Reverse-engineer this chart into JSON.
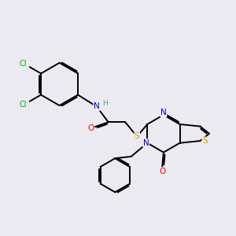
{
  "background_color": "#eaeaf0",
  "atom_colors": {
    "C": "#000000",
    "N": "#0000cc",
    "O": "#ff0000",
    "S": "#ccaa00",
    "Cl": "#00bb00",
    "H": "#6699aa"
  },
  "bond_color": "#000000",
  "bond_width": 1.4,
  "figsize": [
    3.0,
    3.0
  ],
  "dpi": 100
}
